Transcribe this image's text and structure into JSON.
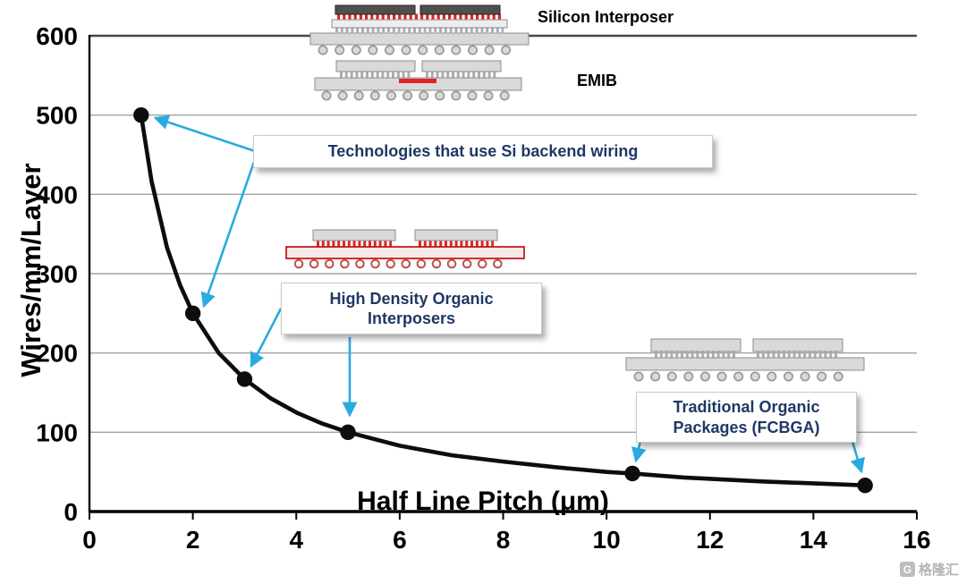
{
  "chart_data": {
    "type": "line",
    "title": "",
    "xlabel": "Half Line Pitch (μm)",
    "ylabel": "Wires/mm/Layer",
    "xlim": [
      0,
      16
    ],
    "ylim": [
      0,
      600
    ],
    "xticks": [
      0,
      2,
      4,
      6,
      8,
      10,
      12,
      14,
      16
    ],
    "yticks": [
      0,
      100,
      200,
      300,
      400,
      500,
      600
    ],
    "grid": "horizontal",
    "points": [
      [
        1,
        500
      ],
      [
        2,
        250
      ],
      [
        3,
        167
      ],
      [
        5,
        100
      ],
      [
        10.5,
        48
      ],
      [
        15,
        33
      ]
    ],
    "curve": [
      [
        1,
        500
      ],
      [
        1.2,
        417
      ],
      [
        1.5,
        333
      ],
      [
        1.75,
        286
      ],
      [
        2,
        250
      ],
      [
        2.5,
        200
      ],
      [
        3,
        167
      ],
      [
        3.5,
        143
      ],
      [
        4,
        125
      ],
      [
        4.5,
        111
      ],
      [
        5,
        100
      ],
      [
        6,
        83
      ],
      [
        7,
        71
      ],
      [
        8,
        63
      ],
      [
        9,
        56
      ],
      [
        10,
        50
      ],
      [
        10.5,
        48
      ],
      [
        11.5,
        43
      ],
      [
        13,
        38
      ],
      [
        15,
        33
      ]
    ],
    "line_color": "#0d0d0d",
    "grid_color": "#a3a3a3",
    "arrow_color": "#29abe2"
  },
  "labels": {
    "silicon_interposer": "Silicon Interposer",
    "emib": "EMIB"
  },
  "callouts": {
    "si_backend": "Technologies that use Si backend wiring",
    "hdo": "High Density Organic Interposers",
    "fcbga": "Traditional Organic Packages (FCBGA)"
  },
  "arrows": [
    {
      "from": [
        288,
        170
      ],
      "to": [
        174,
        132
      ]
    },
    {
      "from": [
        284,
        181
      ],
      "to": [
        228,
        342
      ]
    },
    {
      "from": [
        314,
        345
      ],
      "to": [
        281,
        409
      ]
    },
    {
      "from": [
        391,
        377
      ],
      "to": [
        391,
        464
      ]
    },
    {
      "from": [
        722,
        467
      ],
      "to": [
        711,
        515
      ]
    },
    {
      "from": [
        947,
        474
      ],
      "to": [
        963,
        527
      ]
    }
  ],
  "watermark": {
    "logo": "G",
    "text": "格隆汇"
  }
}
